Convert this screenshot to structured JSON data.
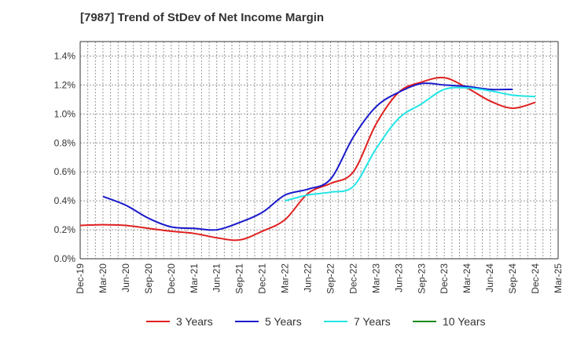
{
  "title": "[7987]  Trend of StDev of Net Income Margin",
  "chart_data": {
    "type": "line",
    "title": "[7987]  Trend of StDev of Net Income Margin",
    "xlabel": "",
    "ylabel": "",
    "ylim": [
      0,
      1.5
    ],
    "y_ticks": [
      0,
      0.2,
      0.4,
      0.6,
      0.8,
      1.0,
      1.2,
      1.4
    ],
    "y_tick_labels": [
      "0.0%",
      "0.2%",
      "0.4%",
      "0.6%",
      "0.8%",
      "1.0%",
      "1.2%",
      "1.4%"
    ],
    "x_tick_labels": [
      "Dec-19",
      "Mar-20",
      "Jun-20",
      "Sep-20",
      "Dec-20",
      "Mar-21",
      "Jun-21",
      "Sep-21",
      "Dec-21",
      "Mar-22",
      "Jun-22",
      "Sep-22",
      "Dec-22",
      "Mar-23",
      "Jun-23",
      "Sep-23",
      "Dec-23",
      "Mar-24",
      "Jun-24",
      "Sep-24",
      "Dec-24",
      "Mar-25"
    ],
    "grid": true,
    "legend_position": "bottom",
    "series": [
      {
        "name": "3 Years",
        "color": "#e02020",
        "start_index": 0,
        "values": [
          0.23,
          0.235,
          0.23,
          0.21,
          0.19,
          0.175,
          0.145,
          0.13,
          0.19,
          0.27,
          0.45,
          0.52,
          0.6,
          0.93,
          1.15,
          1.22,
          1.25,
          1.18,
          1.09,
          1.04,
          1.08
        ]
      },
      {
        "name": "5 Years",
        "color": "#1a1acc",
        "start_index": 1,
        "values": [
          0.43,
          0.37,
          0.28,
          0.22,
          0.21,
          0.2,
          0.25,
          0.32,
          0.44,
          0.48,
          0.55,
          0.84,
          1.05,
          1.15,
          1.21,
          1.2,
          1.19,
          1.17,
          1.17
        ]
      },
      {
        "name": "7 Years",
        "color": "#22e5e5",
        "start_index": 9,
        "values": [
          0.4,
          0.44,
          0.46,
          0.5,
          0.76,
          0.97,
          1.07,
          1.17,
          1.18,
          1.16,
          1.13,
          1.12
        ]
      },
      {
        "name": "10 Years",
        "color": "#1a8a1a",
        "start_index": 0,
        "values": []
      }
    ]
  },
  "colors": {
    "axis": "#333333",
    "grid": "#999999",
    "text": "#333333"
  }
}
